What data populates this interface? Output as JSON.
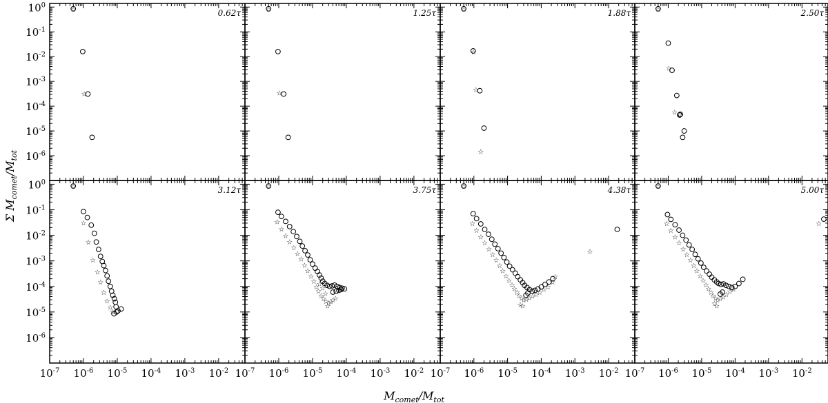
{
  "figure": {
    "xlabel": "M_comet/M_tot",
    "ylabel": "Σ M_comet/M_tot"
  },
  "chart_data": [
    {
      "type": "scatter",
      "panel_label": "0.62τ",
      "xscale": "log",
      "yscale": "log",
      "xlim": [
        1e-07,
        0.06
      ],
      "ylim": [
        1e-07,
        1.4
      ],
      "series": [
        {
          "marker": "circle",
          "x": [
            5e-07,
            9.5e-07,
            1.35e-06,
            1.8e-06
          ],
          "y": [
            0.85,
            0.016,
            0.00031,
            5.5e-06
          ]
        },
        {
          "marker": "star",
          "x": [
            5e-07,
            1.05e-06
          ],
          "y": [
            0.85,
            0.00033
          ]
        }
      ]
    },
    {
      "type": "scatter",
      "panel_label": "1.25τ",
      "xscale": "log",
      "yscale": "log",
      "xlim": [
        1e-07,
        0.06
      ],
      "ylim": [
        1e-07,
        1.4
      ],
      "series": [
        {
          "marker": "circle",
          "x": [
            5e-07,
            9.5e-07,
            1.4e-06,
            1.9e-06
          ],
          "y": [
            0.85,
            0.016,
            0.00031,
            5.5e-06
          ]
        },
        {
          "marker": "star",
          "x": [
            5e-07,
            1.05e-06
          ],
          "y": [
            0.85,
            0.00035
          ]
        }
      ]
    },
    {
      "type": "scatter",
      "panel_label": "1.88τ",
      "xscale": "log",
      "yscale": "log",
      "xlim": [
        1e-07,
        0.06
      ],
      "ylim": [
        1e-07,
        1.4
      ],
      "series": [
        {
          "marker": "circle",
          "x": [
            5e-07,
            9.5e-07,
            1.5e-06,
            2e-06
          ],
          "y": [
            0.85,
            0.017,
            0.00042,
            1.3e-05
          ]
        },
        {
          "marker": "star",
          "x": [
            5e-07,
            9.8e-07,
            1.15e-06,
            1.6e-06
          ],
          "y": [
            0.85,
            0.016,
            0.00048,
            1.5e-06
          ]
        }
      ]
    },
    {
      "type": "scatter",
      "panel_label": "2.50τ",
      "xscale": "log",
      "yscale": "log",
      "xlim": [
        1e-07,
        0.06
      ],
      "ylim": [
        1e-07,
        1.4
      ],
      "series": [
        {
          "marker": "circle",
          "x": [
            5e-07,
            1e-06,
            1.3e-06,
            1.8e-06,
            2.3e-06,
            2.2e-06,
            3e-06,
            2.7e-06
          ],
          "y": [
            0.85,
            0.035,
            0.0028,
            0.00027,
            4.7e-05,
            4.4e-05,
            1e-05,
            5.5e-06
          ]
        },
        {
          "marker": "star",
          "x": [
            5e-07,
            1.05e-06,
            1.55e-06,
            2.2e-06
          ],
          "y": [
            0.85,
            0.0035,
            5.8e-05,
            4.6e-05
          ]
        }
      ]
    },
    {
      "type": "scatter",
      "panel_label": "3.12τ",
      "xscale": "log",
      "yscale": "log",
      "xlim": [
        1e-07,
        0.06
      ],
      "ylim": [
        1e-07,
        1.4
      ],
      "series": [
        {
          "marker": "circle",
          "x": [
            5e-07,
            1e-06,
            1.3e-06,
            1.7e-06,
            2.1e-06,
            2.4e-06,
            2.8e-06,
            3.2e-06,
            3.6e-06,
            4e-06,
            4.5e-06,
            5e-06,
            5.5e-06,
            6.2e-06,
            6.8e-06,
            7.4e-06,
            8.2e-06,
            8.8e-06,
            9.2e-06,
            1.05e-05,
            8e-06,
            1.3e-05,
            9.5e-06
          ],
          "y": [
            0.85,
            0.085,
            0.05,
            0.025,
            0.012,
            0.0055,
            0.0028,
            0.0015,
            0.00095,
            0.00065,
            0.00042,
            0.00026,
            0.00016,
            0.0001,
            6.5e-05,
            4.5e-05,
            3.3e-05,
            2.4e-05,
            1.6e-05,
            1.1e-05,
            8.5e-06,
            1.3e-05,
            1e-05
          ]
        },
        {
          "marker": "star",
          "x": [
            5e-07,
            1e-06,
            1.4e-06,
            1.9e-06,
            2.6e-06,
            3.2e-06,
            4e-06,
            5e-06,
            6.2e-06,
            7.2e-06
          ],
          "y": [
            0.85,
            0.032,
            0.0055,
            0.0011,
            0.00038,
            0.00015,
            6e-05,
            2.8e-05,
            1.6e-05,
            1.1e-05
          ]
        }
      ]
    },
    {
      "type": "scatter",
      "panel_label": "3.75τ",
      "xscale": "log",
      "yscale": "log",
      "xlim": [
        1e-07,
        0.06
      ],
      "ylim": [
        1e-07,
        1.4
      ],
      "series": [
        {
          "marker": "circle",
          "x": [
            5e-07,
            9.5e-07,
            1.2e-06,
            1.6e-06,
            2.1e-06,
            2.7e-06,
            3.4e-06,
            4.2e-06,
            5e-06,
            6e-06,
            7.2e-06,
            8.5e-06,
            1e-05,
            1.2e-05,
            1.4e-05,
            1.6e-05,
            1.8e-05,
            2e-05,
            2.3e-05,
            2.7e-05,
            3.2e-05,
            3.8e-05,
            4.5e-05,
            5.4e-05,
            6.4e-05,
            7.5e-05,
            8.8e-05,
            4e-05,
            5e-05,
            6e-05,
            7e-05
          ],
          "y": [
            0.85,
            0.08,
            0.055,
            0.035,
            0.022,
            0.014,
            0.009,
            0.0058,
            0.0038,
            0.0025,
            0.0017,
            0.0011,
            0.00075,
            0.00052,
            0.00038,
            0.00028,
            0.00021,
            0.00016,
            0.00013,
            0.00011,
            0.0001,
            0.000105,
            0.000112,
            0.0001,
            9e-05,
            8.5e-05,
            8e-05,
            6e-05,
            6.5e-05,
            7e-05,
            7.5e-05
          ]
        },
        {
          "marker": "star",
          "x": [
            5e-07,
            9e-07,
            1.2e-06,
            1.6e-06,
            2.1e-06,
            2.8e-06,
            3.6e-06,
            4.6e-06,
            5.8e-06,
            7.2e-06,
            9e-06,
            1.1e-05,
            1.3e-05,
            1.5e-05,
            1.8e-05,
            2.1e-05,
            2.5e-05,
            3e-05,
            3.5e-05,
            4e-05,
            4.8e-05,
            1.6e-05,
            2e-05,
            2.4e-05,
            2.8e-05
          ],
          "y": [
            0.85,
            0.035,
            0.018,
            0.01,
            0.0058,
            0.0034,
            0.002,
            0.0012,
            0.0007,
            0.00042,
            0.00026,
            0.00016,
            0.0001,
            6.8e-05,
            4.6e-05,
            3.4e-05,
            2.7e-05,
            2.3e-05,
            2.6e-05,
            3e-05,
            3.5e-05,
            0.00013,
            9e-05,
            5.5e-05,
            1.8e-05
          ]
        }
      ]
    },
    {
      "type": "scatter",
      "panel_label": "4.38τ",
      "xscale": "log",
      "yscale": "log",
      "xlim": [
        1e-07,
        0.06
      ],
      "ylim": [
        1e-07,
        1.4
      ],
      "series": [
        {
          "marker": "circle",
          "x": [
            5e-07,
            9.5e-07,
            1.2e-06,
            1.6e-06,
            2.1e-06,
            2.7e-06,
            3.4e-06,
            4.2e-06,
            5.2e-06,
            6.4e-06,
            7.8e-06,
            9.5e-06,
            1.15e-05,
            1.4e-05,
            1.7e-05,
            2e-05,
            2.4e-05,
            2.8e-05,
            3.2e-05,
            3.8e-05,
            4.5e-05,
            5.4e-05,
            6.5e-05,
            8e-05,
            0.0001,
            0.00013,
            0.00017,
            0.00022,
            0.018,
            3.5e-05,
            4e-05
          ],
          "y": [
            0.85,
            0.07,
            0.045,
            0.028,
            0.017,
            0.011,
            0.007,
            0.0045,
            0.003,
            0.002,
            0.00135,
            0.0009,
            0.00062,
            0.00045,
            0.00033,
            0.00024,
            0.00018,
            0.00014,
            0.00011,
            9e-05,
            7.5e-05,
            6.5e-05,
            7e-05,
            8e-05,
            9.5e-05,
            0.00012,
            0.00015,
            0.0002,
            0.017,
            4.5e-05,
            5.5e-05
          ]
        },
        {
          "marker": "star",
          "x": [
            5e-07,
            9e-07,
            1.2e-06,
            1.6e-06,
            2.1e-06,
            2.8e-06,
            3.6e-06,
            4.6e-06,
            5.8e-06,
            7.2e-06,
            9e-06,
            1.1e-05,
            1.35e-05,
            1.6e-05,
            1.9e-05,
            2.2e-05,
            2.6e-05,
            3e-05,
            3.6e-05,
            4.4e-05,
            5.5e-05,
            7e-05,
            9e-05,
            0.00012,
            0.00016,
            0.00022,
            0.00026,
            0.0028,
            2.4e-05,
            2.8e-05
          ],
          "y": [
            0.85,
            0.03,
            0.016,
            0.009,
            0.0052,
            0.003,
            0.0018,
            0.0011,
            0.00068,
            0.00042,
            0.00027,
            0.00018,
            0.00012,
            8.5e-05,
            6e-05,
            4.5e-05,
            3.5e-05,
            3e-05,
            3.2e-05,
            3.6e-05,
            4.2e-05,
            5e-05,
            6e-05,
            8e-05,
            0.0001,
            0.00015,
            0.00025,
            0.0024,
            2e-05,
            1.8e-05
          ]
        }
      ]
    },
    {
      "type": "scatter",
      "panel_label": "5.00τ",
      "xscale": "log",
      "yscale": "log",
      "xlim": [
        1e-07,
        0.06
      ],
      "ylim": [
        1e-07,
        1.4
      ],
      "series": [
        {
          "marker": "circle",
          "x": [
            5e-07,
            9.5e-07,
            1.2e-06,
            1.6e-06,
            2.1e-06,
            2.7e-06,
            3.4e-06,
            4.2e-06,
            5.2e-06,
            6.4e-06,
            7.8e-06,
            9.5e-06,
            1.15e-05,
            1.4e-05,
            1.7e-05,
            2e-05,
            2.4e-05,
            2.8e-05,
            3.2e-05,
            3.8e-05,
            4.5e-05,
            5.4e-05,
            6.5e-05,
            8e-05,
            0.0001,
            0.00013,
            0.00017,
            0.045,
            3.6e-05,
            4.2e-05
          ],
          "y": [
            0.85,
            0.065,
            0.042,
            0.026,
            0.016,
            0.01,
            0.0065,
            0.0042,
            0.0028,
            0.0018,
            0.0012,
            0.00082,
            0.00056,
            0.0004,
            0.0003,
            0.00023,
            0.00018,
            0.00015,
            0.00013,
            0.00012,
            0.000125,
            0.00011,
            0.0001,
            9e-05,
            0.0001,
            0.00013,
            0.00019,
            0.043,
            5e-05,
            6e-05
          ]
        },
        {
          "marker": "star",
          "x": [
            5e-07,
            9e-07,
            1.2e-06,
            1.6e-06,
            2.1e-06,
            2.8e-06,
            3.6e-06,
            4.6e-06,
            5.8e-06,
            7.2e-06,
            9e-06,
            1.1e-05,
            1.35e-05,
            1.6e-05,
            1.9e-05,
            2.2e-05,
            2.6e-05,
            3e-05,
            3.6e-05,
            4.4e-05,
            5.5e-05,
            7e-05,
            9e-05,
            0.032,
            2.4e-05,
            2.8e-05
          ],
          "y": [
            0.85,
            0.03,
            0.016,
            0.009,
            0.0052,
            0.003,
            0.0018,
            0.0011,
            0.00068,
            0.00042,
            0.00027,
            0.00018,
            0.00012,
            8.5e-05,
            6e-05,
            4.5e-05,
            3.5e-05,
            3e-05,
            3.4e-05,
            4e-05,
            5e-05,
            6.5e-05,
            8e-05,
            0.03,
            2.2e-05,
            1.8e-05
          ]
        }
      ]
    }
  ]
}
